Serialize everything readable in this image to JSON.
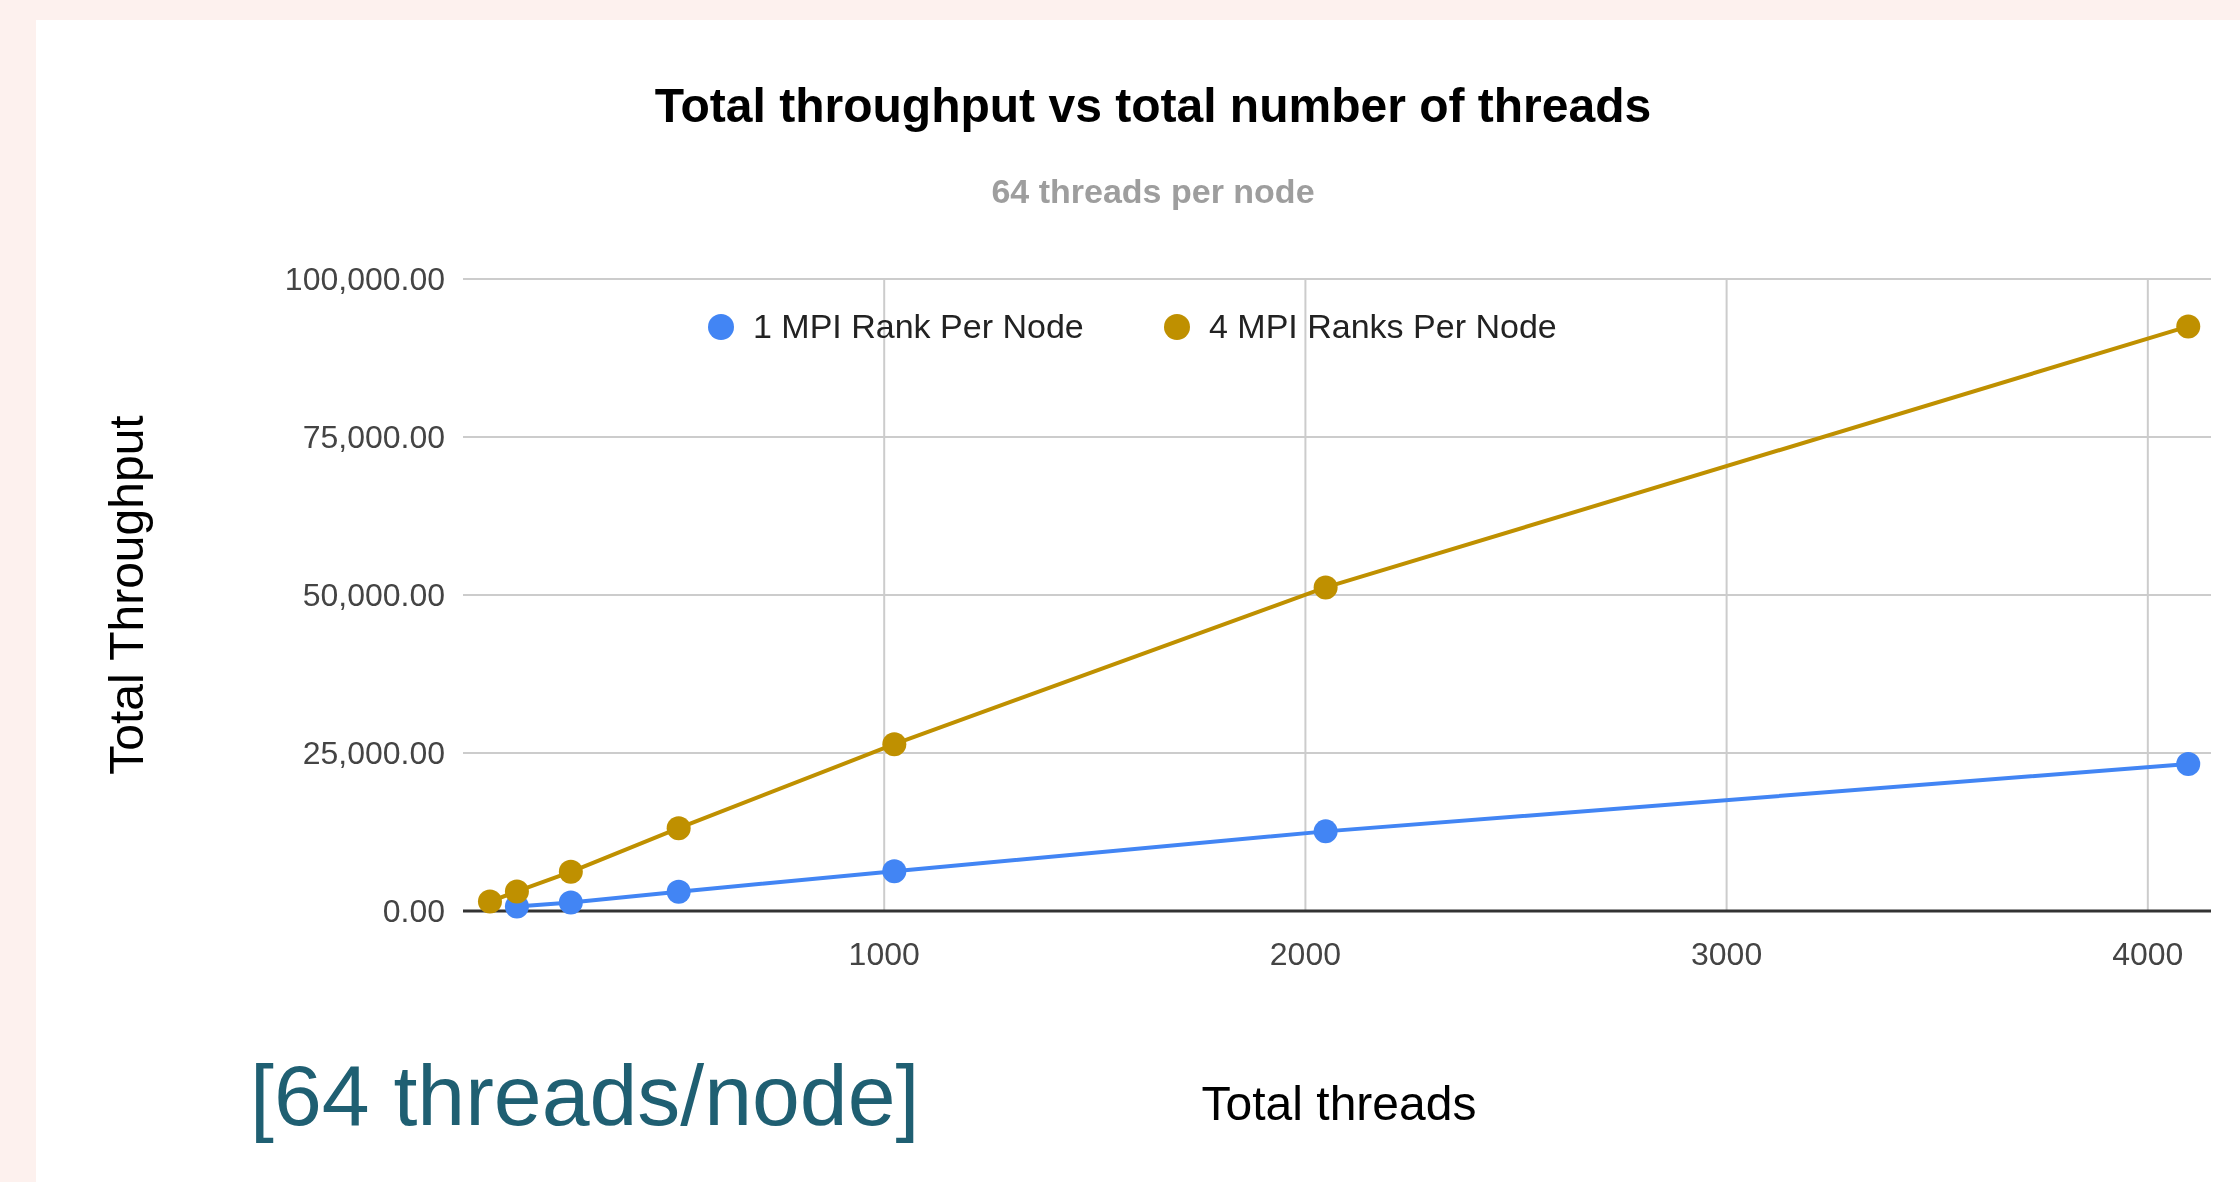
{
  "chart_data": {
    "type": "line",
    "title": "Total throughput vs total number of threads",
    "subtitle": "64 threads per node",
    "xlabel": "Total threads",
    "ylabel": "Total Throughput",
    "annotations": [
      "[64 threads/node]"
    ],
    "series": [
      {
        "name": "1 MPI Rank Per Node",
        "color": "#4285f4",
        "x": [
          128,
          256,
          512,
          1024,
          2048,
          4096
        ],
        "values": [
          700,
          1350,
          3050,
          6300,
          12600,
          23250
        ]
      },
      {
        "name": "4 MPI Ranks Per Node",
        "color": "#bf9000",
        "x": [
          64,
          128,
          256,
          512,
          1024,
          2048,
          4096
        ],
        "values": [
          1500,
          3100,
          6200,
          13100,
          26400,
          51200,
          92500
        ]
      }
    ],
    "xlim": [
      0,
      4150
    ],
    "xticks": [
      1000,
      2000,
      3000,
      4000
    ],
    "ylim": [
      0,
      100000
    ],
    "yticks": [
      {
        "value": 0,
        "label": "0.00"
      },
      {
        "value": 25000,
        "label": "25,000.00"
      },
      {
        "value": 50000,
        "label": "50,000.00"
      },
      {
        "value": 75000,
        "label": "75,000.00"
      },
      {
        "value": 100000,
        "label": "100,000.00"
      }
    ],
    "grid": true,
    "legend": "top",
    "marker": "circle",
    "line_style": "solid"
  }
}
